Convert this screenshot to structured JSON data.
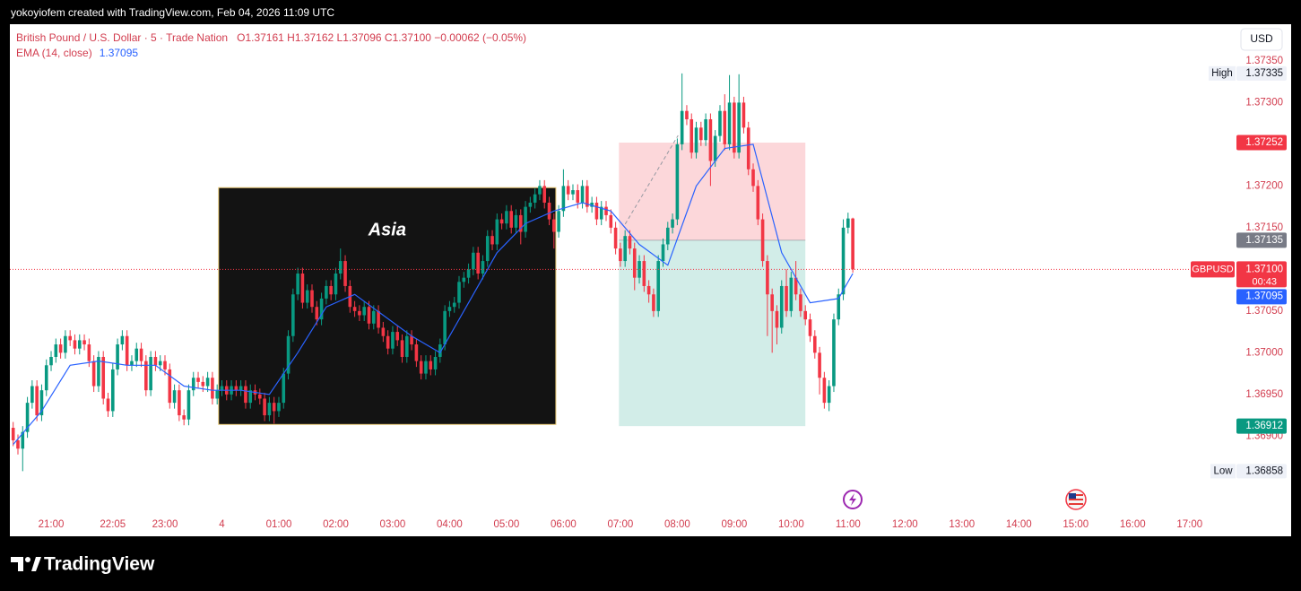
{
  "header": {
    "attribution": "yokoyiofem created with TradingView.com, Feb 04, 2026 11:09 UTC",
    "brand": "TradingView"
  },
  "chart_data": {
    "type": "candlestick",
    "legend": {
      "symbol": "British Pound / U.S. Dollar · 5 · Trade Nation",
      "ohlc": "O1.37161 H1.37162 L1.37096 C1.37100 −0.00062 (−0.05%)"
    },
    "currency": "USD",
    "up_color": "#089981",
    "down_color": "#f23645",
    "ohlc": [
      [
        1.3691,
        1.36917,
        1.36888,
        1.36895
      ],
      [
        1.36895,
        1.36902,
        1.36878,
        1.36885
      ],
      [
        1.36885,
        1.36912,
        1.36858,
        1.36905
      ],
      [
        1.36905,
        1.36947,
        1.36898,
        1.3694
      ],
      [
        1.3694,
        1.36967,
        1.36933,
        1.3696
      ],
      [
        1.3696,
        1.36967,
        1.36918,
        1.36925
      ],
      [
        1.36925,
        1.36962,
        1.36918,
        1.36955
      ],
      [
        1.36955,
        1.36992,
        1.36948,
        1.36985
      ],
      [
        1.36985,
        1.37002,
        1.36978,
        1.36995
      ],
      [
        1.36995,
        1.37017,
        1.36988,
        1.3701
      ],
      [
        1.3701,
        1.37017,
        1.36993,
        1.37
      ],
      [
        1.37,
        1.37027,
        1.36993,
        1.3702
      ],
      [
        1.3702,
        1.37027,
        1.37008,
        1.37015
      ],
      [
        1.37015,
        1.37022,
        1.36998,
        1.37005
      ],
      [
        1.37005,
        1.37022,
        1.36998,
        1.37015
      ],
      [
        1.37015,
        1.37022,
        1.37003,
        1.3701
      ],
      [
        1.3701,
        1.37017,
        1.36983,
        1.3699
      ],
      [
        1.3699,
        1.36997,
        1.36953,
        1.3696
      ],
      [
        1.3696,
        1.37002,
        1.36953,
        1.36995
      ],
      [
        1.36995,
        1.37002,
        1.36938,
        1.36945
      ],
      [
        1.36945,
        1.36952,
        1.36923,
        1.3693
      ],
      [
        1.3693,
        1.36987,
        1.36923,
        1.3698
      ],
      [
        1.3698,
        1.37017,
        1.36973,
        1.3701
      ],
      [
        1.3701,
        1.37027,
        1.37003,
        1.3702
      ],
      [
        1.3702,
        1.37027,
        1.36978,
        1.36985
      ],
      [
        1.36985,
        1.36997,
        1.36978,
        1.3699
      ],
      [
        1.3699,
        1.37012,
        1.36983,
        1.37005
      ],
      [
        1.37005,
        1.37012,
        1.36983,
        1.3699
      ],
      [
        1.3699,
        1.36997,
        1.36948,
        1.36955
      ],
      [
        1.36955,
        1.37002,
        1.36948,
        1.36995
      ],
      [
        1.36995,
        1.37002,
        1.36978,
        1.36985
      ],
      [
        1.36985,
        1.36997,
        1.36978,
        1.3699
      ],
      [
        1.3699,
        1.36997,
        1.36973,
        1.3698
      ],
      [
        1.3698,
        1.36987,
        1.36933,
        1.3694
      ],
      [
        1.3694,
        1.36962,
        1.36933,
        1.36955
      ],
      [
        1.36955,
        1.36962,
        1.36918,
        1.36925
      ],
      [
        1.36925,
        1.36932,
        1.36913,
        1.3692
      ],
      [
        1.3692,
        1.36962,
        1.36913,
        1.36955
      ],
      [
        1.36955,
        1.36977,
        1.36948,
        1.3697
      ],
      [
        1.3697,
        1.36977,
        1.36958,
        1.36965
      ],
      [
        1.36965,
        1.36972,
        1.36953,
        1.3696
      ],
      [
        1.3696,
        1.36977,
        1.36953,
        1.3697
      ],
      [
        1.3697,
        1.36977,
        1.36938,
        1.36945
      ],
      [
        1.36945,
        1.36962,
        1.36938,
        1.36955
      ],
      [
        1.36955,
        1.36967,
        1.36948,
        1.3696
      ],
      [
        1.3696,
        1.36967,
        1.36943,
        1.3695
      ],
      [
        1.3695,
        1.36967,
        1.36943,
        1.3696
      ],
      [
        1.3696,
        1.36967,
        1.36948,
        1.36955
      ],
      [
        1.36955,
        1.36967,
        1.36948,
        1.3696
      ],
      [
        1.3696,
        1.36967,
        1.36933,
        1.3694
      ],
      [
        1.3694,
        1.36962,
        1.36933,
        1.36955
      ],
      [
        1.36955,
        1.36962,
        1.36943,
        1.3695
      ],
      [
        1.3695,
        1.36957,
        1.36938,
        1.36945
      ],
      [
        1.36945,
        1.36952,
        1.36918,
        1.36925
      ],
      [
        1.36925,
        1.36947,
        1.36918,
        1.3694
      ],
      [
        1.3694,
        1.36947,
        1.36915,
        1.3693
      ],
      [
        1.3693,
        1.36947,
        1.36923,
        1.3694
      ],
      [
        1.3694,
        1.36982,
        1.36933,
        1.36975
      ],
      [
        1.36975,
        1.37027,
        1.36968,
        1.3702
      ],
      [
        1.3702,
        1.37077,
        1.37013,
        1.3707
      ],
      [
        1.3707,
        1.37102,
        1.37063,
        1.37095
      ],
      [
        1.37095,
        1.37102,
        1.37053,
        1.3706
      ],
      [
        1.3706,
        1.37082,
        1.37053,
        1.37075
      ],
      [
        1.37075,
        1.37082,
        1.37048,
        1.37055
      ],
      [
        1.37055,
        1.37062,
        1.37033,
        1.3704
      ],
      [
        1.3704,
        1.37072,
        1.37033,
        1.37065
      ],
      [
        1.37065,
        1.37087,
        1.37058,
        1.3708
      ],
      [
        1.3708,
        1.37087,
        1.37063,
        1.3707
      ],
      [
        1.3707,
        1.37102,
        1.37063,
        1.37095
      ],
      [
        1.37095,
        1.37125,
        1.37088,
        1.3711
      ],
      [
        1.3711,
        1.37117,
        1.37073,
        1.3708
      ],
      [
        1.3708,
        1.37087,
        1.37048,
        1.37055
      ],
      [
        1.37055,
        1.37062,
        1.37043,
        1.3705
      ],
      [
        1.3705,
        1.37057,
        1.37038,
        1.37045
      ],
      [
        1.37045,
        1.37062,
        1.37038,
        1.37055
      ],
      [
        1.37055,
        1.37062,
        1.37028,
        1.37035
      ],
      [
        1.37035,
        1.37057,
        1.37028,
        1.3705
      ],
      [
        1.3705,
        1.37057,
        1.37023,
        1.3703
      ],
      [
        1.3703,
        1.37037,
        1.37013,
        1.3702
      ],
      [
        1.3702,
        1.37027,
        1.36998,
        1.37005
      ],
      [
        1.37005,
        1.37032,
        1.36998,
        1.37025
      ],
      [
        1.37025,
        1.37032,
        1.37008,
        1.37015
      ],
      [
        1.37015,
        1.37022,
        1.36988,
        1.36995
      ],
      [
        1.36995,
        1.37027,
        1.36988,
        1.3702
      ],
      [
        1.3702,
        1.37027,
        1.37003,
        1.3701
      ],
      [
        1.3701,
        1.37017,
        1.36983,
        1.3699
      ],
      [
        1.3699,
        1.36997,
        1.36968,
        1.36975
      ],
      [
        1.36975,
        1.36997,
        1.36968,
        1.3699
      ],
      [
        1.3699,
        1.36997,
        1.36973,
        1.3698
      ],
      [
        1.3698,
        1.37002,
        1.36973,
        1.36995
      ],
      [
        1.36995,
        1.37017,
        1.36988,
        1.3701
      ],
      [
        1.3701,
        1.37057,
        1.37003,
        1.3705
      ],
      [
        1.3705,
        1.37062,
        1.37043,
        1.37055
      ],
      [
        1.37055,
        1.37067,
        1.37048,
        1.3706
      ],
      [
        1.3706,
        1.37092,
        1.37053,
        1.37085
      ],
      [
        1.37085,
        1.37097,
        1.37078,
        1.3709
      ],
      [
        1.3709,
        1.37107,
        1.37083,
        1.371
      ],
      [
        1.371,
        1.37127,
        1.37093,
        1.3712
      ],
      [
        1.3712,
        1.37127,
        1.37088,
        1.37095
      ],
      [
        1.37095,
        1.37117,
        1.37088,
        1.3711
      ],
      [
        1.3711,
        1.37147,
        1.37103,
        1.3714
      ],
      [
        1.3714,
        1.37147,
        1.37123,
        1.3713
      ],
      [
        1.3713,
        1.37167,
        1.37123,
        1.3716
      ],
      [
        1.3716,
        1.37167,
        1.37148,
        1.37155
      ],
      [
        1.37155,
        1.37177,
        1.37148,
        1.3717
      ],
      [
        1.3717,
        1.37177,
        1.37143,
        1.3715
      ],
      [
        1.3715,
        1.37172,
        1.37143,
        1.37165
      ],
      [
        1.37165,
        1.37172,
        1.3713,
        1.37145
      ],
      [
        1.37145,
        1.37182,
        1.37138,
        1.37175
      ],
      [
        1.37175,
        1.37187,
        1.37168,
        1.3718
      ],
      [
        1.3718,
        1.37197,
        1.37173,
        1.3719
      ],
      [
        1.3719,
        1.37207,
        1.37183,
        1.372
      ],
      [
        1.372,
        1.37207,
        1.37173,
        1.3718
      ],
      [
        1.3718,
        1.37187,
        1.37153,
        1.3716
      ],
      [
        1.3716,
        1.37167,
        1.37125,
        1.37145
      ],
      [
        1.37145,
        1.37177,
        1.37138,
        1.3717
      ],
      [
        1.3717,
        1.3722,
        1.37163,
        1.372
      ],
      [
        1.372,
        1.37207,
        1.37183,
        1.3719
      ],
      [
        1.3719,
        1.37202,
        1.37183,
        1.37195
      ],
      [
        1.37195,
        1.37202,
        1.37173,
        1.3718
      ],
      [
        1.3718,
        1.37207,
        1.37173,
        1.372
      ],
      [
        1.372,
        1.37207,
        1.37168,
        1.37175
      ],
      [
        1.37175,
        1.37187,
        1.37168,
        1.3718
      ],
      [
        1.3718,
        1.37187,
        1.37153,
        1.3716
      ],
      [
        1.3716,
        1.37182,
        1.37153,
        1.37175
      ],
      [
        1.37175,
        1.37182,
        1.37158,
        1.37165
      ],
      [
        1.37165,
        1.37172,
        1.37143,
        1.3715
      ],
      [
        1.3715,
        1.37157,
        1.37118,
        1.37125
      ],
      [
        1.37125,
        1.37132,
        1.37103,
        1.3711
      ],
      [
        1.3711,
        1.37147,
        1.37103,
        1.3714
      ],
      [
        1.3714,
        1.37147,
        1.37118,
        1.37125
      ],
      [
        1.37125,
        1.37132,
        1.37075,
        1.3709
      ],
      [
        1.3709,
        1.37117,
        1.37083,
        1.3711
      ],
      [
        1.3711,
        1.37117,
        1.37073,
        1.3708
      ],
      [
        1.3708,
        1.37087,
        1.3706,
        1.3707
      ],
      [
        1.3707,
        1.37077,
        1.37043,
        1.3705
      ],
      [
        1.3705,
        1.37117,
        1.37043,
        1.3711
      ],
      [
        1.3711,
        1.37137,
        1.37103,
        1.3713
      ],
      [
        1.3713,
        1.37157,
        1.37123,
        1.3715
      ],
      [
        1.3715,
        1.37167,
        1.37143,
        1.3716
      ],
      [
        1.3716,
        1.37257,
        1.37153,
        1.3725
      ],
      [
        1.3725,
        1.37335,
        1.37243,
        1.3729
      ],
      [
        1.3729,
        1.37297,
        1.37273,
        1.3728
      ],
      [
        1.3728,
        1.37287,
        1.37233,
        1.3724
      ],
      [
        1.3724,
        1.37277,
        1.37233,
        1.3727
      ],
      [
        1.3727,
        1.37277,
        1.37248,
        1.37255
      ],
      [
        1.37255,
        1.37287,
        1.37248,
        1.3728
      ],
      [
        1.3728,
        1.37287,
        1.372,
        1.3723
      ],
      [
        1.3723,
        1.37267,
        1.37223,
        1.3726
      ],
      [
        1.3726,
        1.37297,
        1.37253,
        1.3729
      ],
      [
        1.3729,
        1.3731,
        1.37243,
        1.3725
      ],
      [
        1.3725,
        1.37333,
        1.37243,
        1.373
      ],
      [
        1.373,
        1.37307,
        1.37233,
        1.3724
      ],
      [
        1.3724,
        1.37334,
        1.37233,
        1.373
      ],
      [
        1.373,
        1.37307,
        1.37263,
        1.3727
      ],
      [
        1.3727,
        1.37277,
        1.37213,
        1.3722
      ],
      [
        1.3722,
        1.37227,
        1.37193,
        1.372
      ],
      [
        1.372,
        1.37207,
        1.37153,
        1.3716
      ],
      [
        1.3716,
        1.37167,
        1.37103,
        1.3711
      ],
      [
        1.3711,
        1.37117,
        1.3702,
        1.3707
      ],
      [
        1.3707,
        1.37077,
        1.37,
        1.3705
      ],
      [
        1.3705,
        1.37057,
        1.3701,
        1.3703
      ],
      [
        1.3703,
        1.37087,
        1.37023,
        1.3708
      ],
      [
        1.3708,
        1.371,
        1.37043,
        1.3705
      ],
      [
        1.3705,
        1.37097,
        1.37043,
        1.3709
      ],
      [
        1.3709,
        1.3711,
        1.37063,
        1.3707
      ],
      [
        1.3707,
        1.37077,
        1.37043,
        1.3705
      ],
      [
        1.3705,
        1.37057,
        1.37033,
        1.3704
      ],
      [
        1.3704,
        1.37047,
        1.37013,
        1.3702
      ],
      [
        1.3702,
        1.37027,
        1.36993,
        1.37
      ],
      [
        1.37,
        1.37007,
        1.3695,
        1.3697
      ],
      [
        1.3697,
        1.36977,
        1.36933,
        1.3694
      ],
      [
        1.3694,
        1.36967,
        1.3693,
        1.3696
      ],
      [
        1.3696,
        1.37047,
        1.36953,
        1.3704
      ],
      [
        1.3704,
        1.37077,
        1.37033,
        1.3707
      ],
      [
        1.3707,
        1.3716,
        1.37063,
        1.3715
      ],
      [
        1.3715,
        1.37168,
        1.37143,
        1.37161
      ],
      [
        1.37161,
        1.37162,
        1.37096,
        1.371
      ]
    ],
    "indicator": {
      "name": "EMA (14, close)",
      "value": 1.37095,
      "color": "#2962ff",
      "x": [
        0,
        6,
        12,
        18,
        24,
        30,
        36,
        42,
        48,
        54,
        60,
        66,
        72,
        78,
        84,
        90,
        96,
        102,
        108,
        114,
        120,
        126,
        132,
        138,
        144,
        150,
        156,
        162,
        168,
        174,
        177
      ],
      "values": [
        1.3689,
        1.3693,
        1.36985,
        1.3699,
        1.36985,
        1.36985,
        1.3696,
        1.36955,
        1.36955,
        1.3695,
        1.37,
        1.37055,
        1.3707,
        1.37045,
        1.3702,
        1.37,
        1.3706,
        1.3712,
        1.37155,
        1.3717,
        1.3718,
        1.3717,
        1.3713,
        1.37105,
        1.372,
        1.37245,
        1.3725,
        1.3712,
        1.3706,
        1.37065,
        1.37095
      ]
    },
    "session": {
      "label": "Asia",
      "x": [
        43.3,
        114.4
      ],
      "y": [
        1.36914,
        1.37198
      ]
    },
    "position": {
      "x": [
        127.7,
        167
      ],
      "stop": 1.37252,
      "entry": 1.37135,
      "target": 1.36912,
      "stop_color": "#f23645",
      "entry_color": "#787b86",
      "target_color": "#089981"
    },
    "high": {
      "label": "High",
      "value": 1.37335
    },
    "low": {
      "label": "Low",
      "value": 1.36858
    },
    "last": {
      "symbol": "GBPUSD",
      "price": {
        "value": 1.371,
        "label": "1.37100"
      },
      "countdown": "00:43",
      "color": "#f23645"
    },
    "xlim": [
      -0.7,
      257.5
    ],
    "xticks": [
      {
        "value": 8,
        "label": "21:00"
      },
      {
        "value": 21,
        "label": "22:05"
      },
      {
        "value": 32,
        "label": "23:00"
      },
      {
        "value": 44,
        "label": "4"
      },
      {
        "value": 56,
        "label": "01:00"
      },
      {
        "value": 68,
        "label": "02:00"
      },
      {
        "value": 80,
        "label": "03:00"
      },
      {
        "value": 92,
        "label": "04:00"
      },
      {
        "value": 104,
        "label": "05:00"
      },
      {
        "value": 116,
        "label": "06:00"
      },
      {
        "value": 128,
        "label": "07:00"
      },
      {
        "value": 140,
        "label": "08:00"
      },
      {
        "value": 152,
        "label": "09:00"
      },
      {
        "value": 164,
        "label": "10:00"
      },
      {
        "value": 176,
        "label": "11:00"
      },
      {
        "value": 188,
        "label": "12:00"
      },
      {
        "value": 200,
        "label": "13:00"
      },
      {
        "value": 212,
        "label": "14:00"
      },
      {
        "value": 224,
        "label": "15:00"
      },
      {
        "value": 236,
        "label": "16:00"
      },
      {
        "value": 248,
        "label": "17:00"
      }
    ],
    "ylim": [
      1.3681,
      1.37394
    ],
    "yticks": [
      {
        "value": 1.3735,
        "label": "1.37350"
      },
      {
        "value": 1.373,
        "label": "1.37300"
      },
      {
        "value": 1.372,
        "label": "1.37200"
      },
      {
        "value": 1.3715,
        "label": "1.37150"
      },
      {
        "value": 1.3705,
        "label": "1.37050"
      },
      {
        "value": 1.37,
        "label": "1.37000"
      },
      {
        "value": 1.3695,
        "label": "1.36950"
      },
      {
        "value": 1.369,
        "label": "1.36900"
      }
    ],
    "grid": false
  }
}
